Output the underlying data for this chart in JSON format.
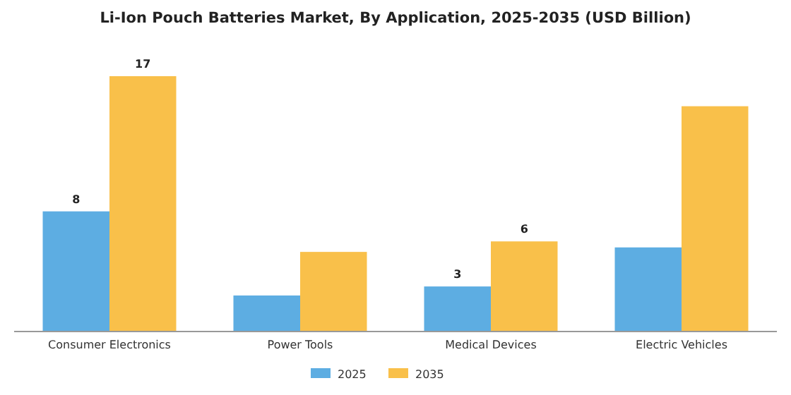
{
  "chart_data": {
    "type": "bar",
    "title": "Li-Ion Pouch Batteries Market, By Application, 2025-2035 (USD Billion)",
    "categories": [
      "Consumer Electronics",
      "Power Tools",
      "Medical Devices",
      "Electric Vehicles"
    ],
    "series": [
      {
        "name": "2025",
        "color": "#5dade2",
        "values": [
          8,
          2.4,
          3,
          5.6
        ],
        "value_labels": [
          "8",
          null,
          "3",
          null
        ]
      },
      {
        "name": "2035",
        "color": "#f9c04a",
        "values": [
          17,
          5.3,
          6,
          15
        ],
        "value_labels": [
          "17",
          null,
          "6",
          null
        ]
      }
    ],
    "legend": "bottom"
  }
}
